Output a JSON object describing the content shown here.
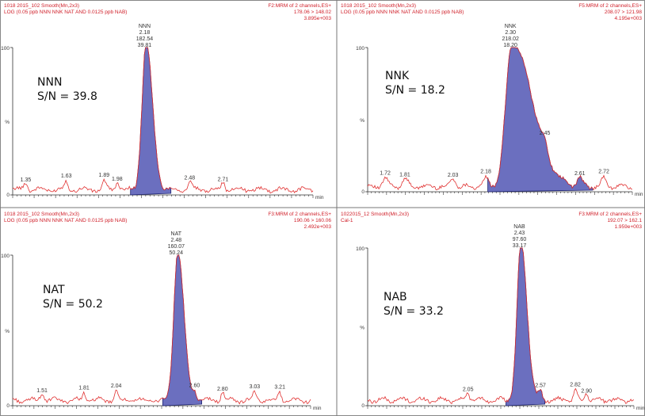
{
  "colors": {
    "trace": "#e03030",
    "peak_fill": "#6b6fbf",
    "peak_edge": "#1c2270",
    "header": "#d0202a",
    "axis": "#333333"
  },
  "chart_data": [
    {
      "type": "line",
      "header_left": [
        "1018 2015_102 Smooth(Mn,2x3)",
        "LOG (0.05 ppb NNN NNK NAT AND 0.0125 ppb NAB)"
      ],
      "header_right": [
        "F2:MRM of 2 channels,ES+",
        "178.06 > 148.02",
        "3.895e+003"
      ],
      "ytick_labels": [
        "100",
        "%",
        "0"
      ],
      "xlabel": "min",
      "analyte": "NNN",
      "sn": "S/N = 39.8",
      "peak_label": [
        "NNN",
        "2.18",
        "182.54",
        "39.81"
      ],
      "peak": {
        "rt": 2.18,
        "height": 100
      },
      "labels": [
        {
          "rt": 1.35,
          "text": "1.35"
        },
        {
          "rt": 1.63,
          "text": "1.63"
        },
        {
          "rt": 1.89,
          "text": "1.89"
        },
        {
          "rt": 1.98,
          "text": "1.98"
        },
        {
          "rt": 2.48,
          "text": "2.48"
        },
        {
          "rt": 2.71,
          "text": "2.71"
        }
      ]
    },
    {
      "type": "line",
      "header_left": [
        "1018 2015_102 Smooth(Mn,2x3)",
        "LOG (0.05 ppb NNN NNK NAT AND 0.0125 ppb NAB)"
      ],
      "header_right": [
        "F5:MRM of 2 channels,ES+",
        "208.07 > 121.98",
        "4.195e+003"
      ],
      "ytick_labels": [
        "100",
        "%",
        "0"
      ],
      "xlabel": "min",
      "analyte": "NNK",
      "sn": "S/N = 18.2",
      "peak_label": [
        "NNK",
        "2.30",
        "218.02",
        "18.20"
      ],
      "peak": {
        "rt": 2.3,
        "height": 100
      },
      "labels": [
        {
          "rt": 1.72,
          "text": "1.72"
        },
        {
          "rt": 1.81,
          "text": "1.81"
        },
        {
          "rt": 2.03,
          "text": "2.03"
        },
        {
          "rt": 2.18,
          "text": "2.18"
        },
        {
          "rt": 2.45,
          "text": "2.45"
        },
        {
          "rt": 2.61,
          "text": "2.61"
        },
        {
          "rt": 2.72,
          "text": "2.72"
        }
      ]
    },
    {
      "type": "line",
      "header_left": [
        "1018 2015_102 Smooth(Mn,2x3)",
        "LOG (0.05 ppb NNN NNK NAT AND 0.0125 ppb NAB)"
      ],
      "header_right": [
        "F3:MRM of 2 channels,ES+",
        "190.06 > 160.06",
        "2.492e+003"
      ],
      "ytick_labels": [
        "100",
        "%",
        "0"
      ],
      "xlabel": "min",
      "analyte": "NAT",
      "sn": "S/N = 50.2",
      "peak_label": [
        "NAT",
        "2.48",
        "160.07",
        "50.24"
      ],
      "peak": {
        "rt": 2.48,
        "height": 100
      },
      "labels": [
        {
          "rt": 1.51,
          "text": "1.51"
        },
        {
          "rt": 1.81,
          "text": "1.81"
        },
        {
          "rt": 2.04,
          "text": "2.04"
        },
        {
          "rt": 2.6,
          "text": "2.60"
        },
        {
          "rt": 2.8,
          "text": "2.80"
        },
        {
          "rt": 3.03,
          "text": "3.03"
        },
        {
          "rt": 3.21,
          "text": "3.21"
        }
      ]
    },
    {
      "type": "line",
      "header_left": [
        "1022015_12 Smooth(Mn,2x3)",
        "Cal-1"
      ],
      "header_right": [
        "F3:MRM of 2 channels,ES+",
        "192.07 > 162.1",
        "1.959e+003"
      ],
      "ytick_labels": [
        "100",
        "%",
        "0"
      ],
      "xlabel": "min",
      "analyte": "NAB",
      "sn": "S/N = 33.2",
      "peak_label": [
        "NAB",
        "2.43",
        "97.60",
        "33.17"
      ],
      "peak": {
        "rt": 2.43,
        "height": 100
      },
      "labels": [
        {
          "rt": 2.05,
          "text": "2.05"
        },
        {
          "rt": 2.57,
          "text": "2.57"
        },
        {
          "rt": 2.82,
          "text": "2.82"
        },
        {
          "rt": 2.9,
          "text": "2.90"
        }
      ]
    }
  ]
}
